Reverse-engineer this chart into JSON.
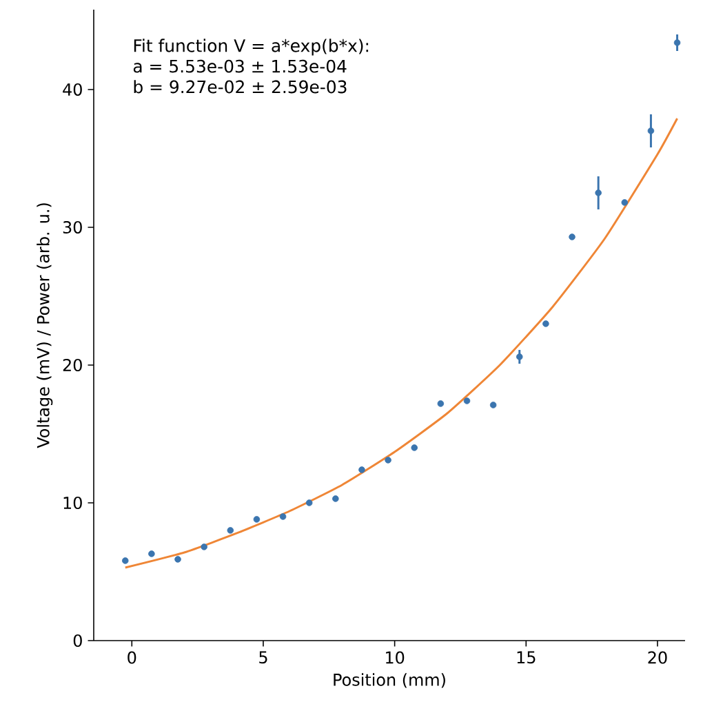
{
  "chart_data": {
    "type": "scatter",
    "xlabel": "Position (mm)",
    "ylabel": "Voltage (mV) / Power (arb. u.)",
    "annotations": [
      "Fit function V = a*exp(b*x):",
      "a = 5.53e-03 ± 1.53e-04",
      "b = 9.27e-02 ± 2.59e-03"
    ],
    "xlim": [
      -1.45,
      21.05
    ],
    "ylim": [
      0,
      45.8
    ],
    "xticks": [
      0,
      5,
      10,
      15,
      20
    ],
    "yticks": [
      0,
      10,
      20,
      30,
      40
    ],
    "marker": "circle",
    "series": [
      {
        "color": "#3b75af",
        "x": [
          -0.25,
          0.75,
          1.75,
          2.75,
          3.75,
          4.75,
          5.75,
          6.75,
          7.75,
          8.75,
          9.75,
          10.75,
          11.75,
          12.75,
          13.75,
          14.75,
          15.75,
          16.75,
          17.75,
          18.75,
          19.75,
          20.75
        ],
        "values": [
          5.8,
          6.3,
          5.9,
          6.8,
          8.0,
          8.8,
          9.0,
          10.0,
          10.3,
          12.4,
          13.1,
          14.0,
          17.2,
          17.4,
          17.1,
          20.6,
          23.0,
          29.3,
          32.5,
          31.8,
          37.0,
          43.4
        ],
        "errors": [
          null,
          null,
          null,
          null,
          null,
          null,
          null,
          null,
          null,
          null,
          null,
          null,
          null,
          null,
          null,
          0.5,
          null,
          null,
          1.2,
          null,
          1.2,
          0.6
        ]
      },
      {
        "type": "line",
        "color": "#ef8636",
        "marker": "none",
        "x": [
          -0.25,
          2,
          4,
          6,
          8,
          10,
          12,
          14,
          16,
          18,
          20,
          20.75
        ],
        "values": [
          5.3,
          6.4,
          7.8,
          9.4,
          11.3,
          13.7,
          16.5,
          20.0,
          24.2,
          29.2,
          35.3,
          37.9
        ]
      }
    ]
  }
}
